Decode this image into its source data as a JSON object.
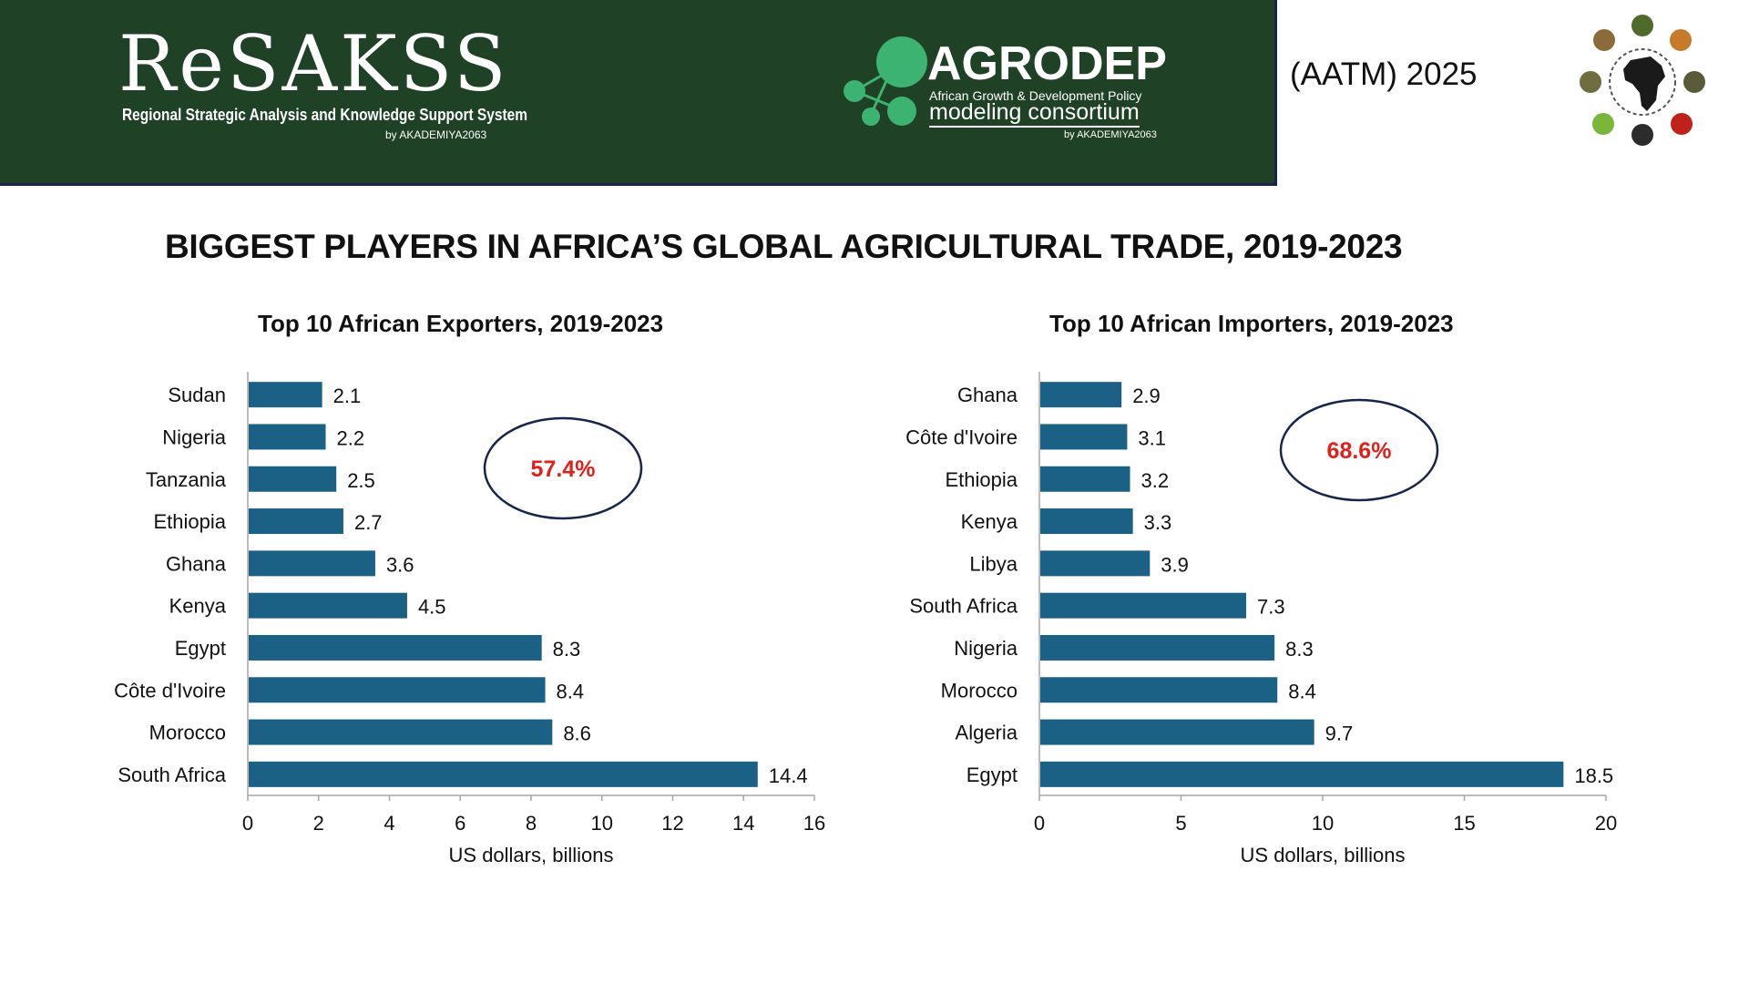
{
  "banner": {
    "resakss_title": "ReSAKSS",
    "resakss_subtitle": "Regional Strategic Analysis and Knowledge Support System",
    "resakss_by": "by AKADEMIYA2063",
    "agrodep_title": "AGRODEP",
    "agrodep_subtitle": "African Growth & Development Policy",
    "agrodep_subtitle2": "modeling consortium",
    "agrodep_by": "by AKADEMIYA2063",
    "event": "(AATM) 2025",
    "colors": {
      "banner_bg": "#1f4125",
      "agrodep_green": "#3cb371"
    }
  },
  "title": "BIGGEST PLAYERS IN AFRICA’S GLOBAL AGRICULTURAL TRADE, 2019-2023",
  "chart_data": [
    {
      "type": "bar",
      "orientation": "horizontal",
      "title": "Top 10 African Exporters, 2019-2023",
      "categories": [
        "Sudan",
        "Nigeria",
        "Tanzania",
        "Ethiopia",
        "Ghana",
        "Kenya",
        "Egypt",
        "Côte d'Ivoire",
        "Morocco",
        "South Africa"
      ],
      "values": [
        2.1,
        2.2,
        2.5,
        2.7,
        3.6,
        4.5,
        8.3,
        8.4,
        8.6,
        14.4
      ],
      "value_labels": [
        "2.1",
        "2.2",
        "2.5",
        "2.7",
        "3.6",
        "4.5",
        "8.3",
        "8.4",
        "8.6",
        "14.4"
      ],
      "xlim": [
        0,
        16
      ],
      "xticks": [
        0,
        2,
        4,
        6,
        8,
        10,
        12,
        14,
        16
      ],
      "xlabel": "US dollars, billions",
      "ylabel": "",
      "annotation": "57.4%",
      "bar_color": "#1b6085",
      "annotation_color": "#e0201b"
    },
    {
      "type": "bar",
      "orientation": "horizontal",
      "title": "Top 10 African Importers, 2019-2023",
      "categories": [
        "Ghana",
        "Côte d'Ivoire",
        "Ethiopia",
        "Kenya",
        "Libya",
        "South Africa",
        "Nigeria",
        "Morocco",
        "Algeria",
        "Egypt"
      ],
      "values": [
        2.9,
        3.1,
        3.2,
        3.3,
        3.9,
        7.3,
        8.3,
        8.4,
        9.7,
        18.5
      ],
      "value_labels": [
        "2.9",
        "3.1",
        "3.2",
        "3.3",
        "3.9",
        "7.3",
        "8.3",
        "8.4",
        "9.7",
        "18.5"
      ],
      "xlim": [
        0,
        20
      ],
      "xticks": [
        0,
        5,
        10,
        15,
        20
      ],
      "xlabel": "US dollars, billions",
      "ylabel": "",
      "annotation": "68.6%",
      "bar_color": "#1b6085",
      "annotation_color": "#e0201b"
    }
  ]
}
